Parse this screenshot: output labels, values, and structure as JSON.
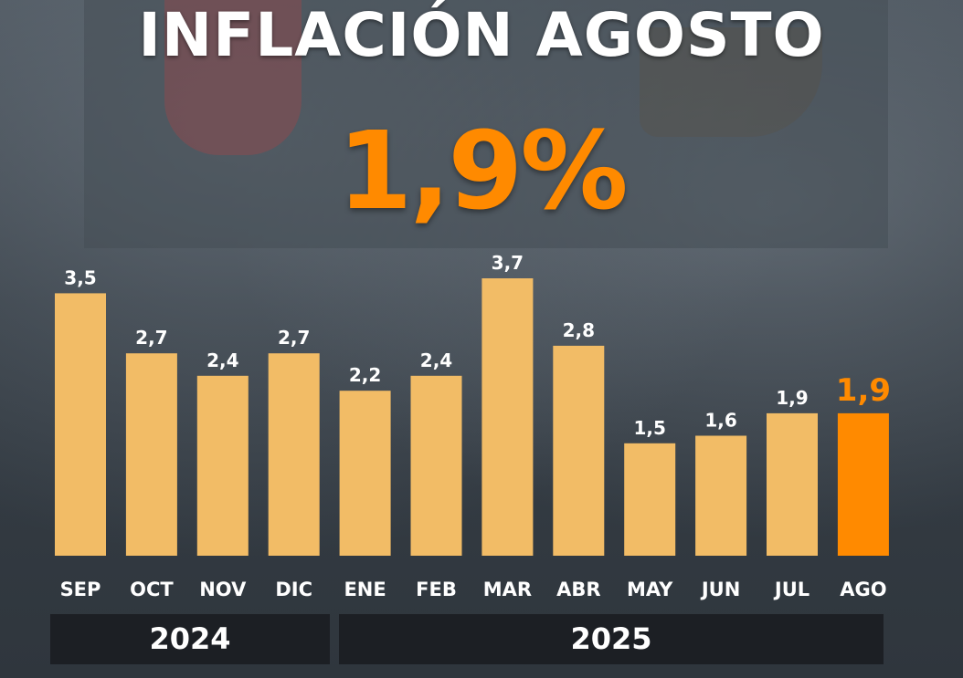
{
  "title": "INFLACIÓN AGOSTO",
  "headline": "1,9%",
  "colors": {
    "bar": "#f2bc66",
    "highlight": "#ff8a00",
    "label": "#ffffff",
    "year_band": "#1c1f24"
  },
  "years": [
    "2024",
    "2025"
  ],
  "chart_data": {
    "type": "bar",
    "title": "INFLACIÓN AGOSTO",
    "xlabel": "",
    "ylabel": "",
    "categories": [
      "SEP",
      "OCT",
      "NOV",
      "DIC",
      "ENE",
      "FEB",
      "MAR",
      "ABR",
      "MAY",
      "JUN",
      "JUL",
      "AGO"
    ],
    "values": [
      3.5,
      2.7,
      2.4,
      2.7,
      2.2,
      2.4,
      3.7,
      2.8,
      1.5,
      1.6,
      1.9,
      1.9
    ],
    "value_labels": [
      "3,5",
      "2,7",
      "2,4",
      "2,7",
      "2,2",
      "2,4",
      "3,7",
      "2,8",
      "1,5",
      "1,6",
      "1,9",
      "1,9"
    ],
    "highlight_index": 11,
    "ylim": [
      0,
      4.1
    ],
    "grid": false,
    "legend": "none"
  }
}
